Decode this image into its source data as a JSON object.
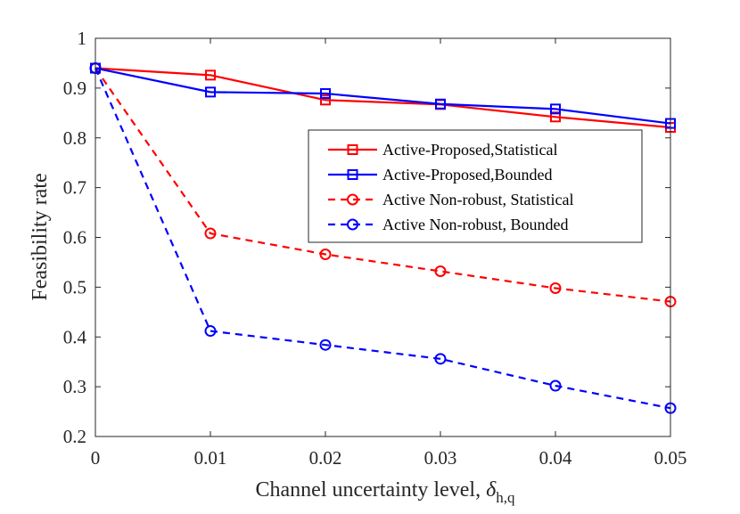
{
  "chart_data": {
    "type": "line",
    "title": "",
    "xlabel": "Channel uncertainty level,",
    "xlabel_symbol": "δ",
    "xlabel_subscript": "h,q",
    "ylabel": "Feasibility rate",
    "x": [
      0,
      0.01,
      0.02,
      0.03,
      0.04,
      0.05
    ],
    "xlim": [
      0,
      0.05
    ],
    "ylim": [
      0.2,
      1.0
    ],
    "x_ticks": [
      "0",
      "0.01",
      "0.02",
      "0.03",
      "0.04",
      "0.05"
    ],
    "y_ticks": [
      "0.2",
      "0.3",
      "0.4",
      "0.5",
      "0.6",
      "0.7",
      "0.8",
      "0.9",
      "1"
    ],
    "grid": false,
    "legend_position": "right",
    "series": [
      {
        "name": "Active-Proposed,Statistical",
        "color": "#ff0000",
        "dash": "solid",
        "marker": "square",
        "values": [
          0.94,
          0.926,
          0.876,
          0.867,
          0.842,
          0.821
        ]
      },
      {
        "name": "Active-Proposed,Bounded",
        "color": "#0000ff",
        "dash": "solid",
        "marker": "square",
        "values": [
          0.94,
          0.892,
          0.889,
          0.868,
          0.858,
          0.829
        ]
      },
      {
        "name": "Active Non-robust, Statistical",
        "color": "#ff0000",
        "dash": "dashed",
        "marker": "circle",
        "values": [
          0.94,
          0.608,
          0.566,
          0.532,
          0.498,
          0.471
        ]
      },
      {
        "name": "Active Non-robust, Bounded",
        "color": "#0000ff",
        "dash": "dashed",
        "marker": "circle",
        "values": [
          0.94,
          0.412,
          0.384,
          0.356,
          0.302,
          0.257
        ]
      }
    ]
  }
}
